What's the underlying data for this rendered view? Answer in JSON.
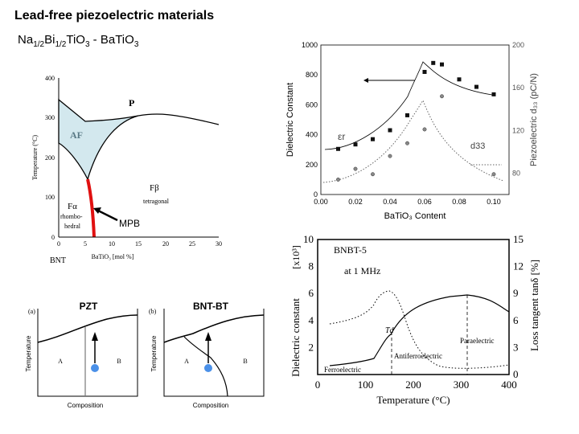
{
  "slide": {
    "title": "Lead-free piezoelectric materials",
    "subtitle": {
      "a": "Na",
      "s1": "1/2",
      "b": "Bi",
      "s2": "1/2",
      "c": "TiO",
      "s3": "3",
      "d": " - BaTiO",
      "s4": "3"
    }
  },
  "phase_diagram": {
    "y_label": "Temperature (°C)",
    "x_label": "BaTiO₃ [mol %]",
    "x_origin_label": "BNT",
    "y_ticks": [
      "400",
      "300",
      "200",
      "100",
      "0"
    ],
    "x_ticks": [
      "0",
      "5",
      "10",
      "15",
      "20",
      "25",
      "30"
    ],
    "regions": {
      "P": "P",
      "AF": "AF",
      "Fb": "Fβ",
      "Fb_sub": "tetragonal",
      "Fa": "Fα",
      "Fa_sub1": "rhombo-",
      "Fa_sub2": "hedral"
    },
    "mpb_label": "MPB",
    "colors": {
      "af_fill": "#d3e8ee",
      "mpb": "#e01010"
    }
  },
  "dielectric_chart": {
    "y_label": "Dielectric Constant",
    "y2_label": "Piezoelectric d₃₃ (pC/N)",
    "x_label": "BaTiO₃ Content",
    "y_ticks": [
      "1000",
      "800",
      "600",
      "400",
      "200",
      "0"
    ],
    "y2_ticks": [
      "200",
      "160",
      "120",
      "80"
    ],
    "x_ticks": [
      "0.00",
      "0.02",
      "0.04",
      "0.06",
      "0.08",
      "0.10"
    ],
    "er_label": "εr",
    "d33_label": "d33",
    "er_points": [
      [
        0.01,
        305
      ],
      [
        0.02,
        335
      ],
      [
        0.03,
        370
      ],
      [
        0.04,
        430
      ],
      [
        0.05,
        530
      ],
      [
        0.06,
        820
      ],
      [
        0.065,
        880
      ],
      [
        0.07,
        870
      ],
      [
        0.08,
        770
      ],
      [
        0.09,
        720
      ],
      [
        0.1,
        670
      ]
    ],
    "d33_points": [
      [
        0.01,
        74
      ],
      [
        0.02,
        84
      ],
      [
        0.03,
        79
      ],
      [
        0.04,
        96
      ],
      [
        0.05,
        108
      ],
      [
        0.06,
        121
      ],
      [
        0.07,
        152
      ],
      [
        0.1,
        79
      ]
    ]
  },
  "bnbt_chart": {
    "title": "BNBT-5",
    "subtitle": "at 1 MHz",
    "y_label": "Dielectric constant",
    "y_unit": "[x10³]",
    "y2_label": "Loss tangent tanδ [%]",
    "x_label": "Temperature (°C)",
    "y_ticks": [
      "10",
      "8",
      "6",
      "4",
      "2"
    ],
    "y2_ticks": [
      "15",
      "12",
      "9",
      "6",
      "3",
      "0"
    ],
    "x_ticks": [
      "0",
      "100",
      "200",
      "300",
      "400"
    ],
    "td_label": "Td",
    "regions": [
      "Ferroelectric",
      "Antiferroelectric",
      "Paraelectric"
    ]
  },
  "schematics": {
    "a": {
      "tag": "(a)",
      "title": "PZT",
      "y_label": "Temperature",
      "x_label": "Composition",
      "A": "A",
      "B": "B"
    },
    "b": {
      "tag": "(b)",
      "title": "BNT-BT",
      "y_label": "Temperature",
      "x_label": "Composition",
      "A": "A",
      "B": "B"
    },
    "dot_color": "#4a90e8"
  }
}
